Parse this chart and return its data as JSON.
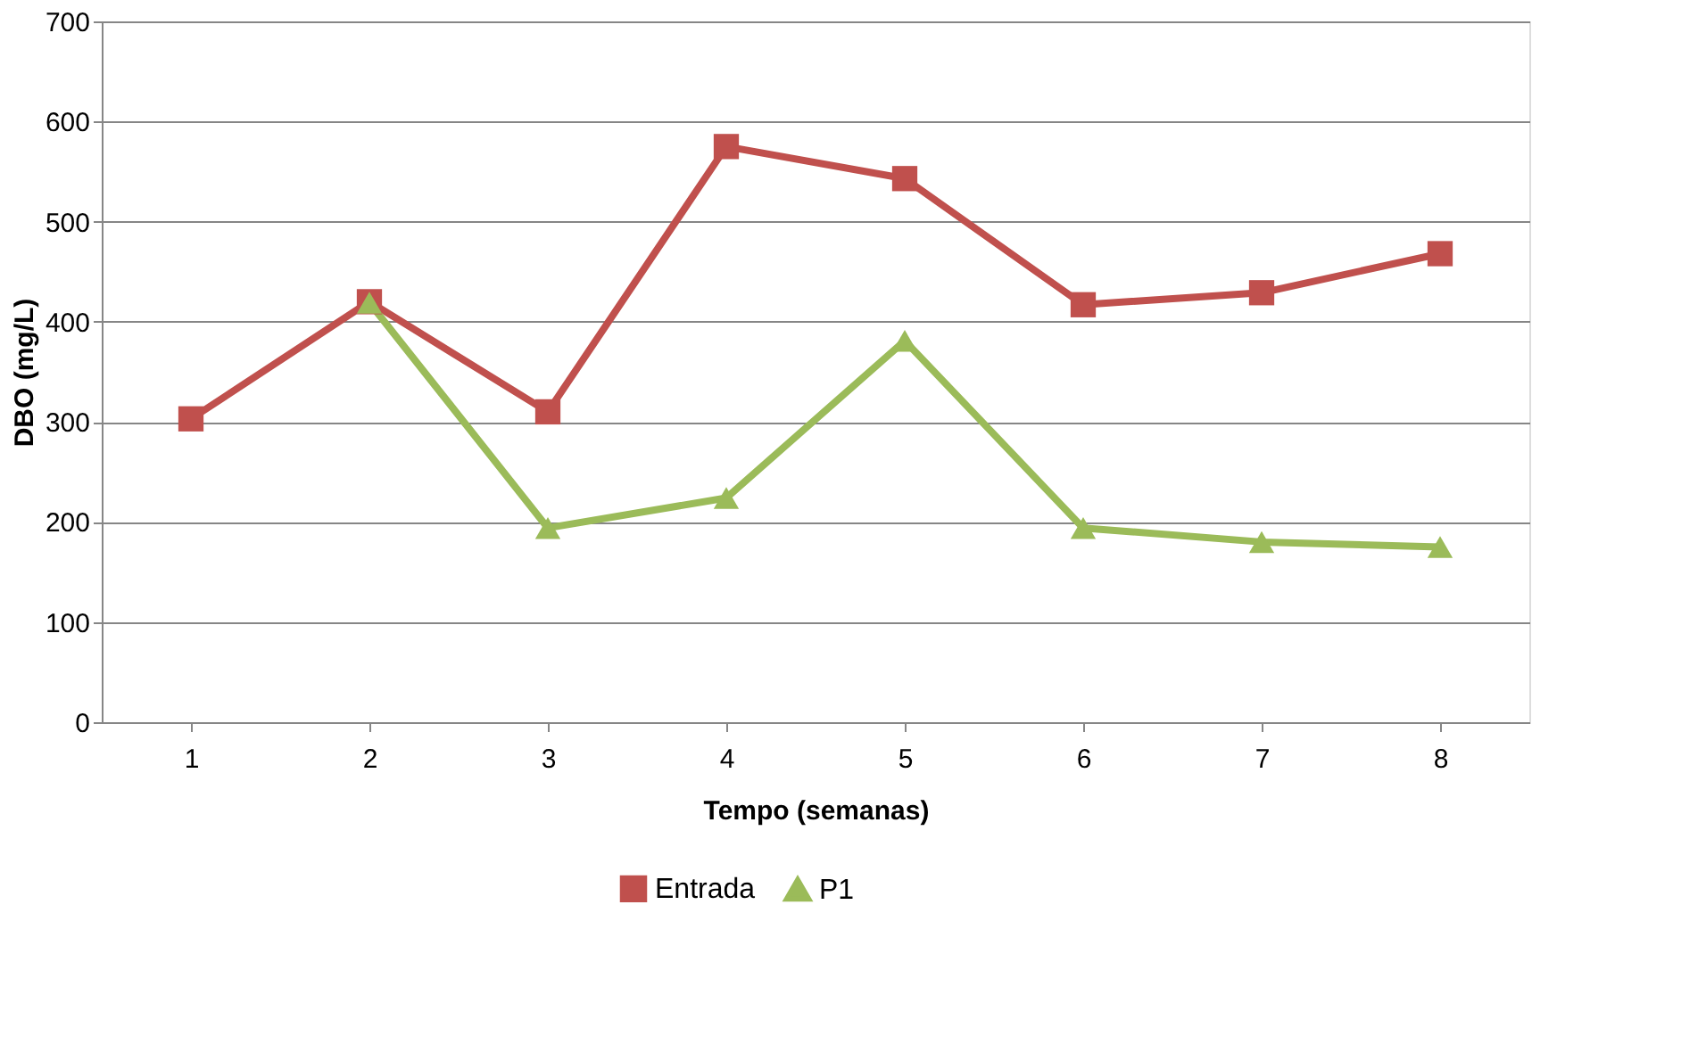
{
  "chart_data": {
    "type": "line",
    "xlabel": "Tempo (semanas)",
    "ylabel": "DBO (mg/L)",
    "categories": [
      "1",
      "2",
      "3",
      "4",
      "5",
      "6",
      "7",
      "8"
    ],
    "series": [
      {
        "name": "Entrada",
        "color": "#c0504d",
        "marker": "square",
        "values": [
          303,
          420,
          310,
          575,
          543,
          417,
          429,
          468
        ]
      },
      {
        "name": "P1",
        "color": "#9bbb59",
        "marker": "triangle",
        "values": [
          null,
          419,
          194,
          224,
          381,
          194,
          180,
          175
        ]
      }
    ],
    "ylim": [
      0,
      700
    ],
    "yticks": [
      0,
      100,
      200,
      300,
      400,
      500,
      600,
      700
    ],
    "grid": "y",
    "legend": "bottom",
    "line_style": "solid"
  }
}
